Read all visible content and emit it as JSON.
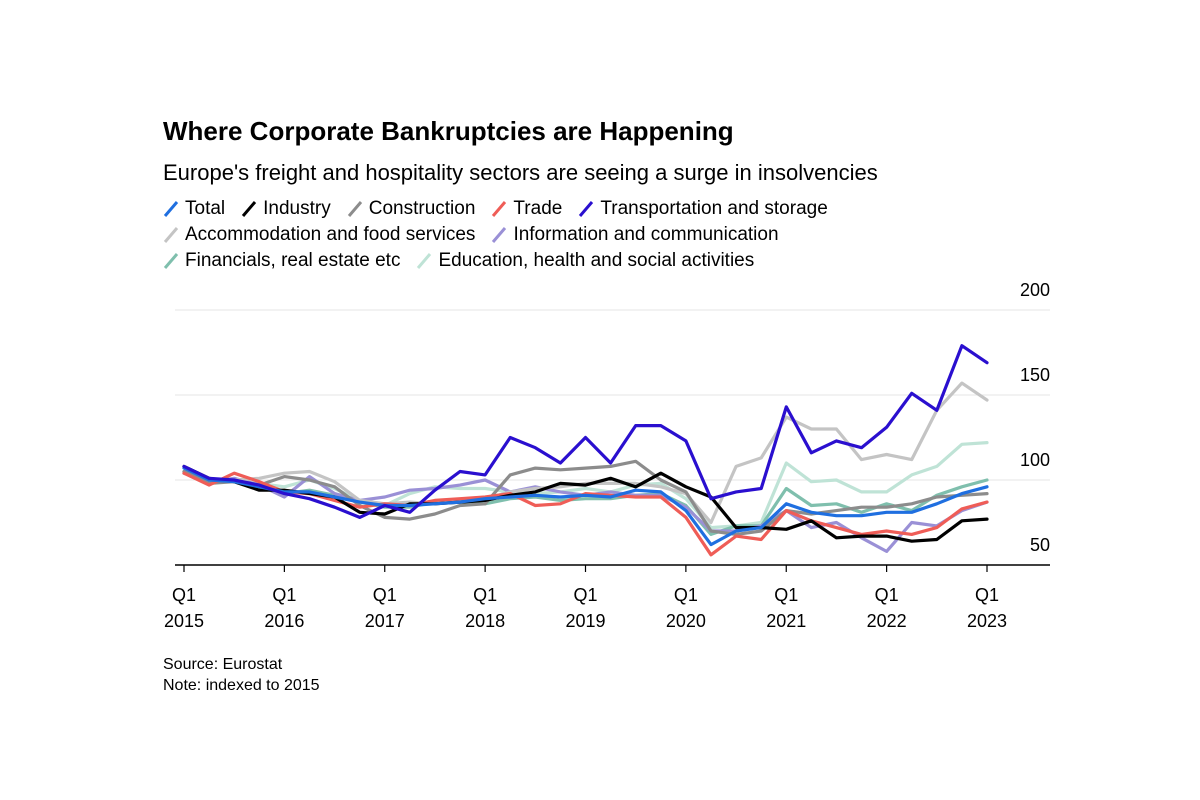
{
  "chart_data": {
    "type": "line",
    "title": "Where Corporate Bankruptcies are Happening",
    "subtitle": "Europe's freight and hospitality sectors are seeing a surge in insolvencies",
    "source": "Source: Eurostat",
    "note": "Note: indexed to 2015",
    "categories": [
      "Q1\n2015",
      null,
      null,
      null,
      "Q1\n2016",
      null,
      null,
      null,
      "Q1\n2017",
      null,
      null,
      null,
      "Q1\n2018",
      null,
      null,
      null,
      "Q1\n2019",
      null,
      null,
      null,
      "Q1\n2020",
      null,
      null,
      null,
      "Q1\n2021",
      null,
      null,
      null,
      "Q1\n2022",
      null,
      null,
      null,
      "Q1\n2023"
    ],
    "ylim": [
      50,
      200
    ],
    "yticks": [
      50,
      100,
      150,
      200
    ],
    "grid": true,
    "series": [
      {
        "name": "Education, health and social activities",
        "color": "#bfe3d6",
        "values": [
          105,
          100,
          100,
          98,
          96,
          100,
          95,
          88,
          85,
          92,
          96,
          95,
          95,
          93,
          92,
          93,
          95,
          93,
          97,
          98,
          89,
          72,
          73,
          75,
          110,
          99,
          100,
          93,
          93,
          103,
          108,
          121,
          122
        ]
      },
      {
        "name": "Financials, real estate etc",
        "color": "#7fbfad",
        "values": [
          104,
          99,
          100,
          97,
          92,
          94,
          91,
          87,
          84,
          84,
          87,
          87,
          86,
          89,
          90,
          88,
          89,
          89,
          91,
          92,
          85,
          68,
          73,
          73,
          95,
          85,
          86,
          81,
          86,
          82,
          91,
          96,
          100
        ]
      },
      {
        "name": "Information and communication",
        "color": "#9a90d6",
        "values": [
          104,
          99,
          101,
          97,
          90,
          102,
          92,
          88,
          90,
          94,
          95,
          97,
          100,
          93,
          96,
          93,
          91,
          93,
          91,
          91,
          84,
          70,
          70,
          73,
          82,
          72,
          75,
          66,
          58,
          75,
          73,
          82,
          87
        ]
      },
      {
        "name": "Accommodation and food services",
        "color": "#c4c4c4",
        "values": [
          105,
          100,
          100,
          101,
          104,
          105,
          99,
          88,
          86,
          87,
          86,
          88,
          89,
          93,
          95,
          96,
          98,
          98,
          98,
          96,
          92,
          75,
          108,
          113,
          137,
          130,
          130,
          112,
          115,
          112,
          141,
          157,
          147
        ]
      },
      {
        "name": "Construction",
        "color": "#8c8c8c",
        "values": [
          105,
          98,
          99,
          97,
          102,
          100,
          96,
          85,
          78,
          77,
          80,
          85,
          86,
          103,
          107,
          106,
          107,
          108,
          111,
          100,
          93,
          70,
          68,
          70,
          82,
          80,
          82,
          84,
          84,
          86,
          90,
          91,
          92
        ]
      },
      {
        "name": "Trade",
        "color": "#ef5d57",
        "values": [
          104,
          97,
          104,
          99,
          93,
          92,
          88,
          84,
          86,
          85,
          88,
          89,
          90,
          92,
          85,
          86,
          92,
          91,
          90,
          90,
          78,
          56,
          67,
          65,
          82,
          76,
          72,
          68,
          70,
          68,
          72,
          83,
          87
        ]
      },
      {
        "name": "Industry",
        "color": "#000000",
        "values": [
          108,
          101,
          99,
          94,
          94,
          92,
          90,
          81,
          80,
          86,
          86,
          87,
          88,
          91,
          93,
          98,
          97,
          101,
          96,
          104,
          96,
          90,
          72,
          72,
          71,
          76,
          66,
          67,
          67,
          64,
          65,
          76,
          77
        ]
      },
      {
        "name": "Total",
        "color": "#1f6fe0",
        "values": [
          107,
          100,
          99,
          96,
          93,
          93,
          90,
          87,
          85,
          85,
          86,
          87,
          89,
          90,
          91,
          90,
          91,
          90,
          94,
          93,
          82,
          62,
          70,
          72,
          86,
          81,
          79,
          79,
          81,
          81,
          86,
          92,
          96
        ]
      },
      {
        "name": "Transportation and storage",
        "color": "#2a0fcf",
        "values": [
          108,
          101,
          100,
          97,
          92,
          89,
          84,
          78,
          85,
          81,
          94,
          105,
          103,
          125,
          119,
          110,
          125,
          110,
          132,
          132,
          123,
          89,
          93,
          95,
          143,
          116,
          123,
          119,
          131,
          151,
          141,
          179,
          169
        ]
      }
    ],
    "legend_order": [
      7,
      6,
      4,
      5,
      8,
      3,
      2,
      1,
      0
    ]
  }
}
